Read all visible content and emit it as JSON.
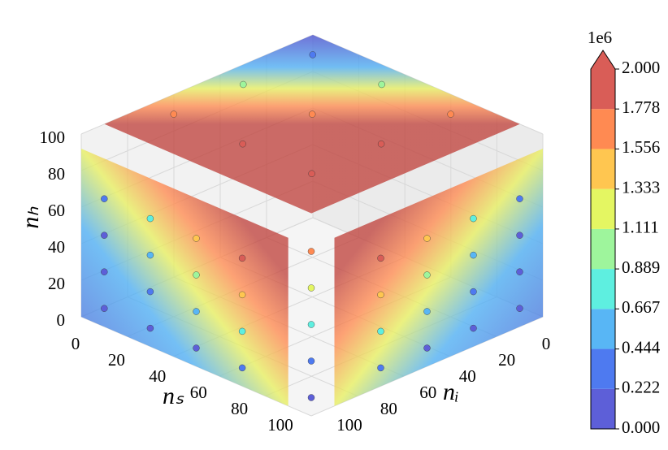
{
  "chart_data": {
    "type": "scatter3d",
    "xlabel": "nₛ",
    "ylabel": "nᵢ",
    "zlabel": "nₕ",
    "xlim": [
      0,
      100
    ],
    "ylim": [
      0,
      100
    ],
    "zlim": [
      0,
      100
    ],
    "xticks": [
      0,
      20,
      40,
      60,
      80,
      100
    ],
    "yticks": [
      0,
      20,
      40,
      60,
      80,
      100
    ],
    "zticks": [
      0,
      20,
      40,
      60,
      80,
      100
    ],
    "grid": true,
    "points": {
      "s": [
        10,
        10,
        10,
        10,
        30,
        30,
        30,
        30,
        50,
        50,
        50,
        50,
        70,
        70,
        70,
        70,
        100,
        100,
        100,
        100,
        100,
        100,
        100,
        100,
        100,
        100,
        100,
        100,
        100,
        100,
        100,
        100,
        10,
        10,
        10,
        40,
        40,
        40,
        70,
        70,
        70,
        100,
        100,
        100,
        100,
        100
      ],
      "i": [
        100,
        100,
        100,
        100,
        100,
        100,
        100,
        100,
        100,
        100,
        100,
        100,
        100,
        100,
        100,
        100,
        10,
        10,
        10,
        10,
        30,
        30,
        30,
        30,
        50,
        50,
        50,
        50,
        70,
        70,
        70,
        70,
        10,
        40,
        70,
        10,
        40,
        70,
        10,
        40,
        70,
        100,
        100,
        100,
        100,
        100
      ],
      "h": [
        10,
        30,
        50,
        70,
        10,
        30,
        50,
        70,
        10,
        30,
        50,
        70,
        10,
        30,
        50,
        70,
        10,
        30,
        50,
        70,
        10,
        30,
        50,
        70,
        10,
        30,
        50,
        70,
        10,
        30,
        50,
        70,
        100,
        100,
        100,
        100,
        100,
        100,
        100,
        100,
        100,
        10,
        30,
        50,
        70,
        90
      ],
      "c": [
        0.04,
        0.12,
        0.2,
        0.28,
        0.12,
        0.36,
        0.6,
        0.84,
        0.2,
        0.6,
        1.0,
        1.4,
        0.28,
        0.84,
        1.4,
        1.96,
        0.04,
        0.12,
        0.2,
        0.28,
        0.12,
        0.36,
        0.6,
        0.84,
        0.2,
        0.6,
        1.0,
        1.4,
        0.28,
        0.84,
        1.4,
        1.96,
        0.4,
        1.0,
        1.6,
        1.0,
        1.6,
        2.0,
        1.6,
        2.0,
        2.0,
        0.1,
        0.4,
        0.8,
        1.2,
        1.6
      ]
    },
    "colorbar": {
      "offset_label": "1e6",
      "clim": [
        0,
        2
      ],
      "extend": "max",
      "colors": [
        "#5d5fd8",
        "#4e7af0",
        "#58b6f5",
        "#5eefe0",
        "#9ef59c",
        "#e4f662",
        "#ffc650",
        "#ff8a52",
        "#d95d57"
      ],
      "ticks": [
        {
          "value": 0,
          "label": "0.000"
        },
        {
          "value": 0.222,
          "label": "0.222"
        },
        {
          "value": 0.444,
          "label": "0.444"
        },
        {
          "value": 0.667,
          "label": "0.667"
        },
        {
          "value": 0.889,
          "label": "0.889"
        },
        {
          "value": 1.111,
          "label": "1.111"
        },
        {
          "value": 1.333,
          "label": "1.333"
        },
        {
          "value": 1.556,
          "label": "1.556"
        },
        {
          "value": 1.778,
          "label": "1.778"
        },
        {
          "value": 2.0,
          "label": "2.000"
        }
      ]
    }
  }
}
